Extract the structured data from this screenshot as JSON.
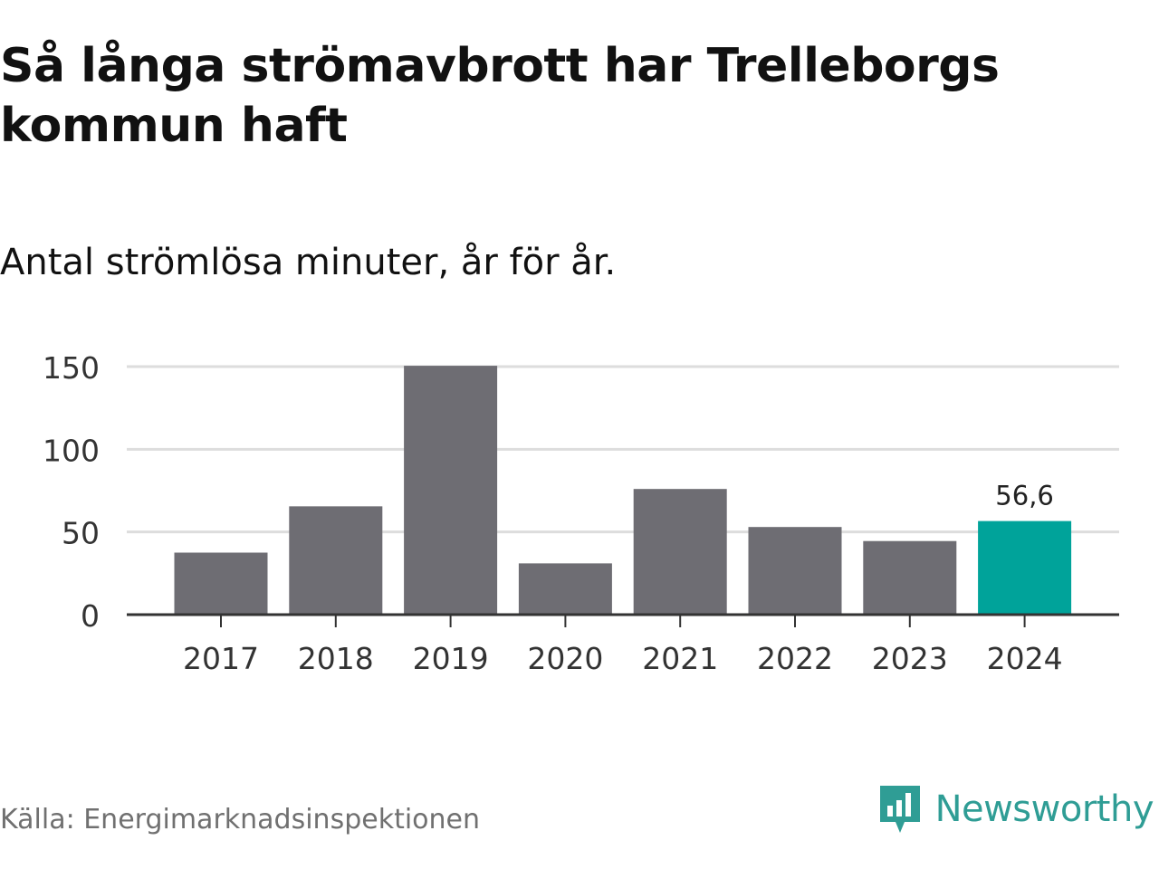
{
  "title": "Så långa strömavbrott har Trelleborgs kommun haft",
  "subtitle": "Antal strömlösa minuter, år för år.",
  "source": "Källa: Energimarknadsinspektionen",
  "brand": {
    "name": "Newsworthy",
    "icon": "newsworthy-logo-icon",
    "color": "#2f9d95"
  },
  "colors": {
    "bar": "#6e6d73",
    "highlight": "#00a39a",
    "grid": "#dddddd",
    "axis": "#333333"
  },
  "chart_data": {
    "type": "bar",
    "categories": [
      "2017",
      "2018",
      "2019",
      "2020",
      "2021",
      "2022",
      "2023",
      "2024"
    ],
    "values": [
      37.5,
      65.5,
      150.5,
      31.0,
      76.0,
      53.0,
      44.5,
      56.6
    ],
    "highlight_index": 7,
    "data_labels": [
      {
        "index": 7,
        "text": "56,6"
      }
    ],
    "yticks": [
      0,
      50,
      100,
      150
    ],
    "ytick_labels": [
      "0",
      "50",
      "100",
      "150"
    ],
    "ylim": [
      0,
      150
    ],
    "grid": true,
    "legend": "none"
  }
}
